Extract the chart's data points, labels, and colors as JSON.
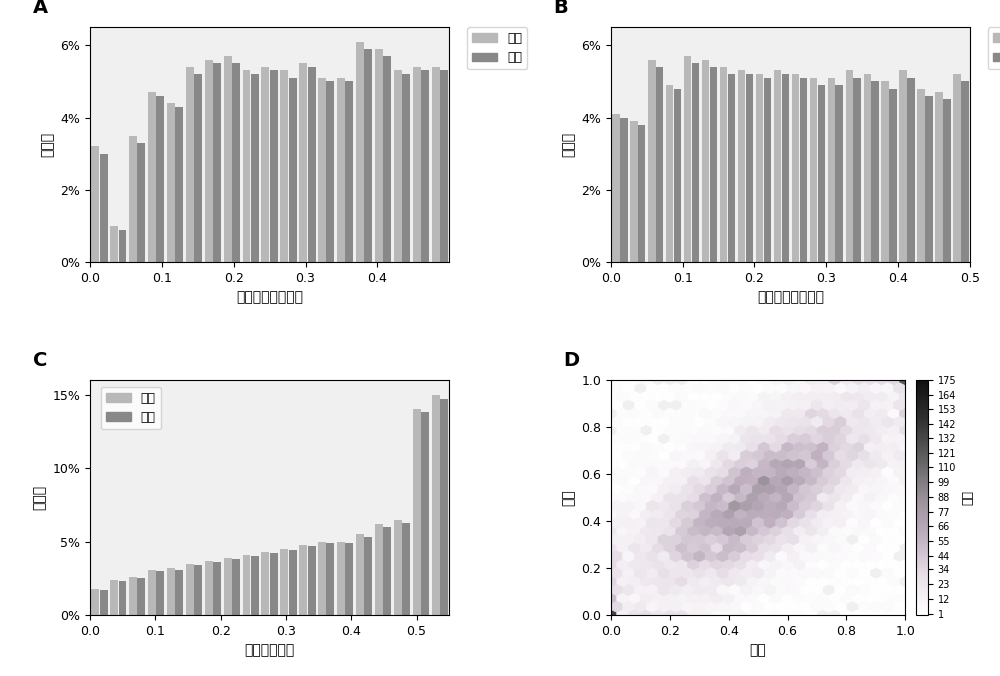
{
  "panel_A_temperate": [
    3.2,
    1.0,
    3.5,
    4.7,
    4.4,
    5.4,
    5.6,
    5.7,
    5.3,
    5.4,
    5.3,
    5.5,
    5.1,
    5.1,
    6.1,
    5.9,
    5.3,
    5.4,
    5.4
  ],
  "panel_A_tropical": [
    3.0,
    0.9,
    3.3,
    4.6,
    4.3,
    5.2,
    5.5,
    5.5,
    5.2,
    5.3,
    5.1,
    5.4,
    5.0,
    5.0,
    5.9,
    5.7,
    5.2,
    5.3,
    5.3
  ],
  "panel_A_bins": 19,
  "panel_B_temperate": [
    4.1,
    3.9,
    5.6,
    4.9,
    5.7,
    5.6,
    5.4,
    5.3,
    5.2,
    5.3,
    5.2,
    5.1,
    5.1,
    5.3,
    5.2,
    5.0,
    5.3,
    4.8,
    4.7,
    5.2
  ],
  "panel_B_tropical": [
    4.0,
    3.8,
    5.4,
    4.8,
    5.5,
    5.4,
    5.2,
    5.2,
    5.1,
    5.2,
    5.1,
    4.9,
    4.9,
    5.1,
    5.0,
    4.8,
    5.1,
    4.6,
    4.5,
    5.0
  ],
  "panel_B_bins": 20,
  "panel_C_temperate": [
    1.8,
    2.4,
    2.6,
    3.1,
    3.2,
    3.5,
    3.7,
    3.9,
    4.1,
    4.3,
    4.5,
    4.8,
    5.0,
    5.0,
    5.5,
    6.2,
    6.5,
    14.0,
    15.0
  ],
  "panel_C_tropical": [
    1.7,
    2.3,
    2.5,
    3.0,
    3.1,
    3.4,
    3.6,
    3.8,
    4.0,
    4.2,
    4.4,
    4.7,
    4.9,
    4.9,
    5.3,
    6.0,
    6.3,
    13.8,
    14.7
  ],
  "panel_C_bins": 19,
  "bar_color_temperate": "#b8b8b8",
  "bar_color_tropical": "#888888",
  "bar_edgecolor": "#666666",
  "xlabel_AB": "最小等位基因频率",
  "xlabel_C": "多态信息含量",
  "ylabel_ABC": "百分数",
  "legend_temperate": "温带",
  "legend_tropical": "热带",
  "colorbar_label": "频数",
  "colorbar_ticks": [
    1,
    12,
    23,
    34,
    44,
    55,
    66,
    77,
    88,
    99,
    110,
    121,
    132,
    142,
    153,
    164,
    175
  ],
  "scatter_xlabel": "热带",
  "scatter_ylabel": "温带",
  "hexbin_gridsize": 25,
  "hexbin_vmax": 175,
  "background_color": "#f0f0f0"
}
